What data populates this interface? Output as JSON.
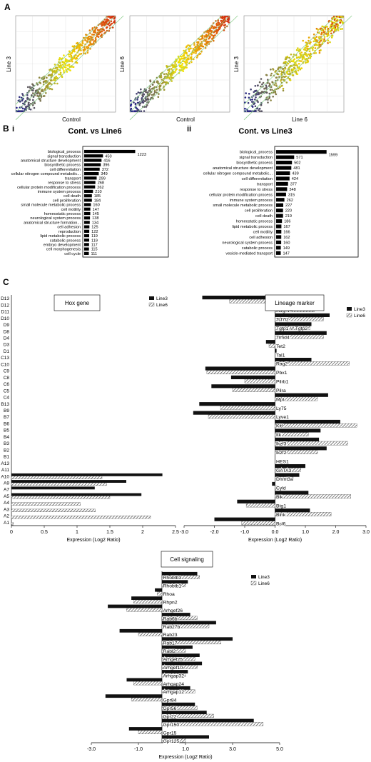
{
  "panel_labels": {
    "A": "A",
    "B": "B",
    "Bi": "i",
    "Bii": "ii",
    "C": "C"
  },
  "legend": {
    "line3": "Line3",
    "line6": "Line6"
  },
  "colors": {
    "line3": "#111111",
    "line6_fill": "#ffffff",
    "line6_stroke": "#333333",
    "blue": "#1a1a8c",
    "yellow": "#f2e600",
    "red": "#d42a10"
  },
  "chart_data": [
    {
      "type": "scatter",
      "panel": "A1",
      "xlabel": "Control",
      "ylabel": "Line 3"
    },
    {
      "type": "scatter",
      "panel": "A2",
      "xlabel": "Control",
      "ylabel": "Line 6"
    },
    {
      "type": "scatter",
      "panel": "A3",
      "xlabel": "Line 6",
      "ylabel": "Line 3"
    },
    {
      "type": "bar",
      "panel": "Bi",
      "title": "Cont. vs Line6",
      "categories": [
        "biological_process",
        "signal transduction",
        "anatomical structure development",
        "biosynthetic process",
        "cell differentiation",
        "cellular nitrogen compound metabolic...",
        "transport",
        "response to stress",
        "cellular protein modification process",
        "immune system process",
        "cell death",
        "cell proliferation",
        "small molecule metabolic process",
        "cell motility",
        "homeostatic process",
        "neurological system process",
        "anatomical structure formation...",
        "cell adhesion",
        "reproduction",
        "lipid metabolic process",
        "catabolic process",
        "embryo development",
        "cell morphogenesis",
        "cell cycle"
      ],
      "values": [
        1223,
        450,
        416,
        396,
        372,
        349,
        299,
        268,
        262,
        210,
        185,
        184,
        160,
        147,
        145,
        138,
        134,
        125,
        122,
        119,
        119,
        117,
        115,
        111
      ],
      "xlim": [
        0,
        1300
      ]
    },
    {
      "type": "bar",
      "panel": "Bii",
      "title": "Cont. vs Line3",
      "categories": [
        "biological_process",
        "signal transduction",
        "biosynthetic process",
        "anatomical structure development",
        "cellular nitrogen compound metabolic...",
        "cell differentiation",
        "transport",
        "response to stress",
        "cellular protein modification process",
        "immune system process",
        "small molecule metabolic process",
        "cell proliferation",
        "cell death",
        "homeostatic process",
        "lipid metabolic process",
        "cell motility",
        "cell adhesion",
        "neurological system process",
        "catabolic process",
        "vesicle-mediated transport"
      ],
      "values": [
        1599,
        571,
        502,
        481,
        439,
        424,
        377,
        348,
        315,
        262,
        227,
        220,
        219,
        186,
        167,
        166,
        162,
        160,
        149,
        147
      ],
      "xlim": [
        0,
        1650
      ]
    },
    {
      "type": "bar",
      "panel": "C-hox",
      "title": "Hox gene",
      "xlabel": "Expression (Log2 Ratio)",
      "categories": [
        "D13",
        "D12",
        "D11",
        "D10",
        "D9",
        "D8",
        "D4",
        "D3",
        "D1",
        "C13",
        "C10",
        "C9",
        "C8",
        "C6",
        "C5",
        "C4",
        "B13",
        "B9",
        "B7",
        "B6",
        "B5",
        "B4",
        "B3",
        "B2",
        "B1",
        "A13",
        "A11",
        "A10",
        "A9",
        "A7",
        "A5",
        "A4",
        "A3",
        "A2",
        "A1"
      ],
      "series": [
        {
          "name": "Line3",
          "values": [
            0,
            0,
            0,
            0,
            0,
            0,
            0,
            0,
            0,
            0,
            0,
            0,
            0,
            0,
            0,
            0,
            0,
            0,
            0,
            0,
            0,
            0,
            0,
            0,
            0,
            0,
            0,
            2.3,
            1.75,
            1.27,
            1.98,
            0,
            0,
            0,
            0
          ]
        },
        {
          "name": "Line6",
          "values": [
            0,
            0,
            0,
            0,
            0,
            0,
            0,
            0,
            0,
            0,
            0,
            0,
            0,
            0,
            0,
            0,
            0,
            0,
            0,
            0,
            0,
            0,
            0,
            0,
            0,
            0,
            0,
            1.38,
            1.45,
            0,
            1.5,
            1.05,
            1.28,
            2.12,
            0.03
          ]
        }
      ],
      "xlim": [
        0,
        2.5
      ],
      "xticks": [
        "0",
        "0.5",
        "1",
        "1.5",
        "2",
        "2.5"
      ]
    },
    {
      "type": "bar",
      "panel": "C-lineage",
      "title": "Lineage marker",
      "xlabel": "Expression (Log2 Ratio)",
      "categories": [
        "Trav6-3",
        "Tcrg-V4",
        "Tcf7l2",
        "Tgtp1 /// Tgtp2",
        "Timd4",
        "Tet2",
        "Tal1",
        "Rag2",
        "Pbx1",
        "Pilrb1",
        "Pilra",
        "Mpl",
        "Ly75",
        "Lyve1",
        "Kitl",
        "Itk",
        "Ikzf3",
        "Ikzf2",
        "HES1",
        "GATA3",
        "Dnmt3a",
        "Cyld",
        "Blk",
        "Btg1",
        "Blnk",
        "Bcl6"
      ],
      "series": [
        {
          "name": "Line3",
          "values": [
            -2.4,
            1.25,
            1.8,
            1.2,
            1.7,
            -0.3,
            0.05,
            1.2,
            -2.3,
            -1.45,
            -2.1,
            1.75,
            -2.5,
            -2.7,
            2.15,
            1.5,
            1.45,
            1.7,
            0,
            1.0,
            0.8,
            -0.1,
            1.1,
            -1.25,
            1.15,
            -2.0
          ]
        },
        {
          "name": "Line6",
          "values": [
            -1.5,
            1.3,
            1.6,
            1.15,
            1.6,
            -0.2,
            0,
            2.45,
            -2.25,
            -1.0,
            -1.4,
            1.4,
            -1.8,
            -2.2,
            2.7,
            1.1,
            2.4,
            1.4,
            0,
            0.85,
            0.6,
            0.1,
            2.5,
            -0.95,
            1.85,
            -1.1
          ]
        }
      ],
      "xlim": [
        -3.0,
        3.0
      ],
      "xticks": [
        "-3.0",
        "-2.0",
        "-1.0",
        "0.0",
        "1.0",
        "2.0",
        "3.0"
      ]
    },
    {
      "type": "bar",
      "panel": "C-signal",
      "title": "Cell signaling",
      "xlabel": "Expression (Log2 Ratio)",
      "categories": [
        "Rhobtb3",
        "Rhobtb1",
        "Rhoa",
        "Rhpn2",
        "Arhgef26",
        "Rab6b",
        "Rab27b",
        "Rab23",
        "Rab17",
        "Rabl2",
        "Arhgef25",
        "Arhgef10",
        "Arhgap32",
        "Arhgap24",
        "Arhgap12",
        "Gpr84",
        "Gpr56",
        "Gpr22",
        "Gpr150",
        "Gpr15",
        "Gpr125"
      ],
      "series": [
        {
          "name": "Line3",
          "values": [
            1.5,
            1.1,
            -0.3,
            -1.3,
            -2.3,
            1.2,
            2.3,
            -1.8,
            3.0,
            1.3,
            1.6,
            1.7,
            1.1,
            -1.5,
            1.2,
            -2.4,
            1.4,
            1.9,
            3.9,
            -1.4,
            2.0
          ]
        },
        {
          "name": "Line6",
          "values": [
            1.6,
            1.0,
            -0.2,
            -1.2,
            -1.5,
            1.5,
            2.0,
            -1.0,
            2.5,
            1.0,
            1.4,
            1.5,
            1.0,
            -1.2,
            1.4,
            -1.3,
            1.5,
            2.2,
            4.3,
            -1.0,
            1.0
          ]
        }
      ],
      "xlim": [
        -3.0,
        5.0
      ],
      "xticks": [
        "-3.0",
        "-1.0",
        "1.0",
        "3.0",
        "5.0"
      ]
    }
  ]
}
